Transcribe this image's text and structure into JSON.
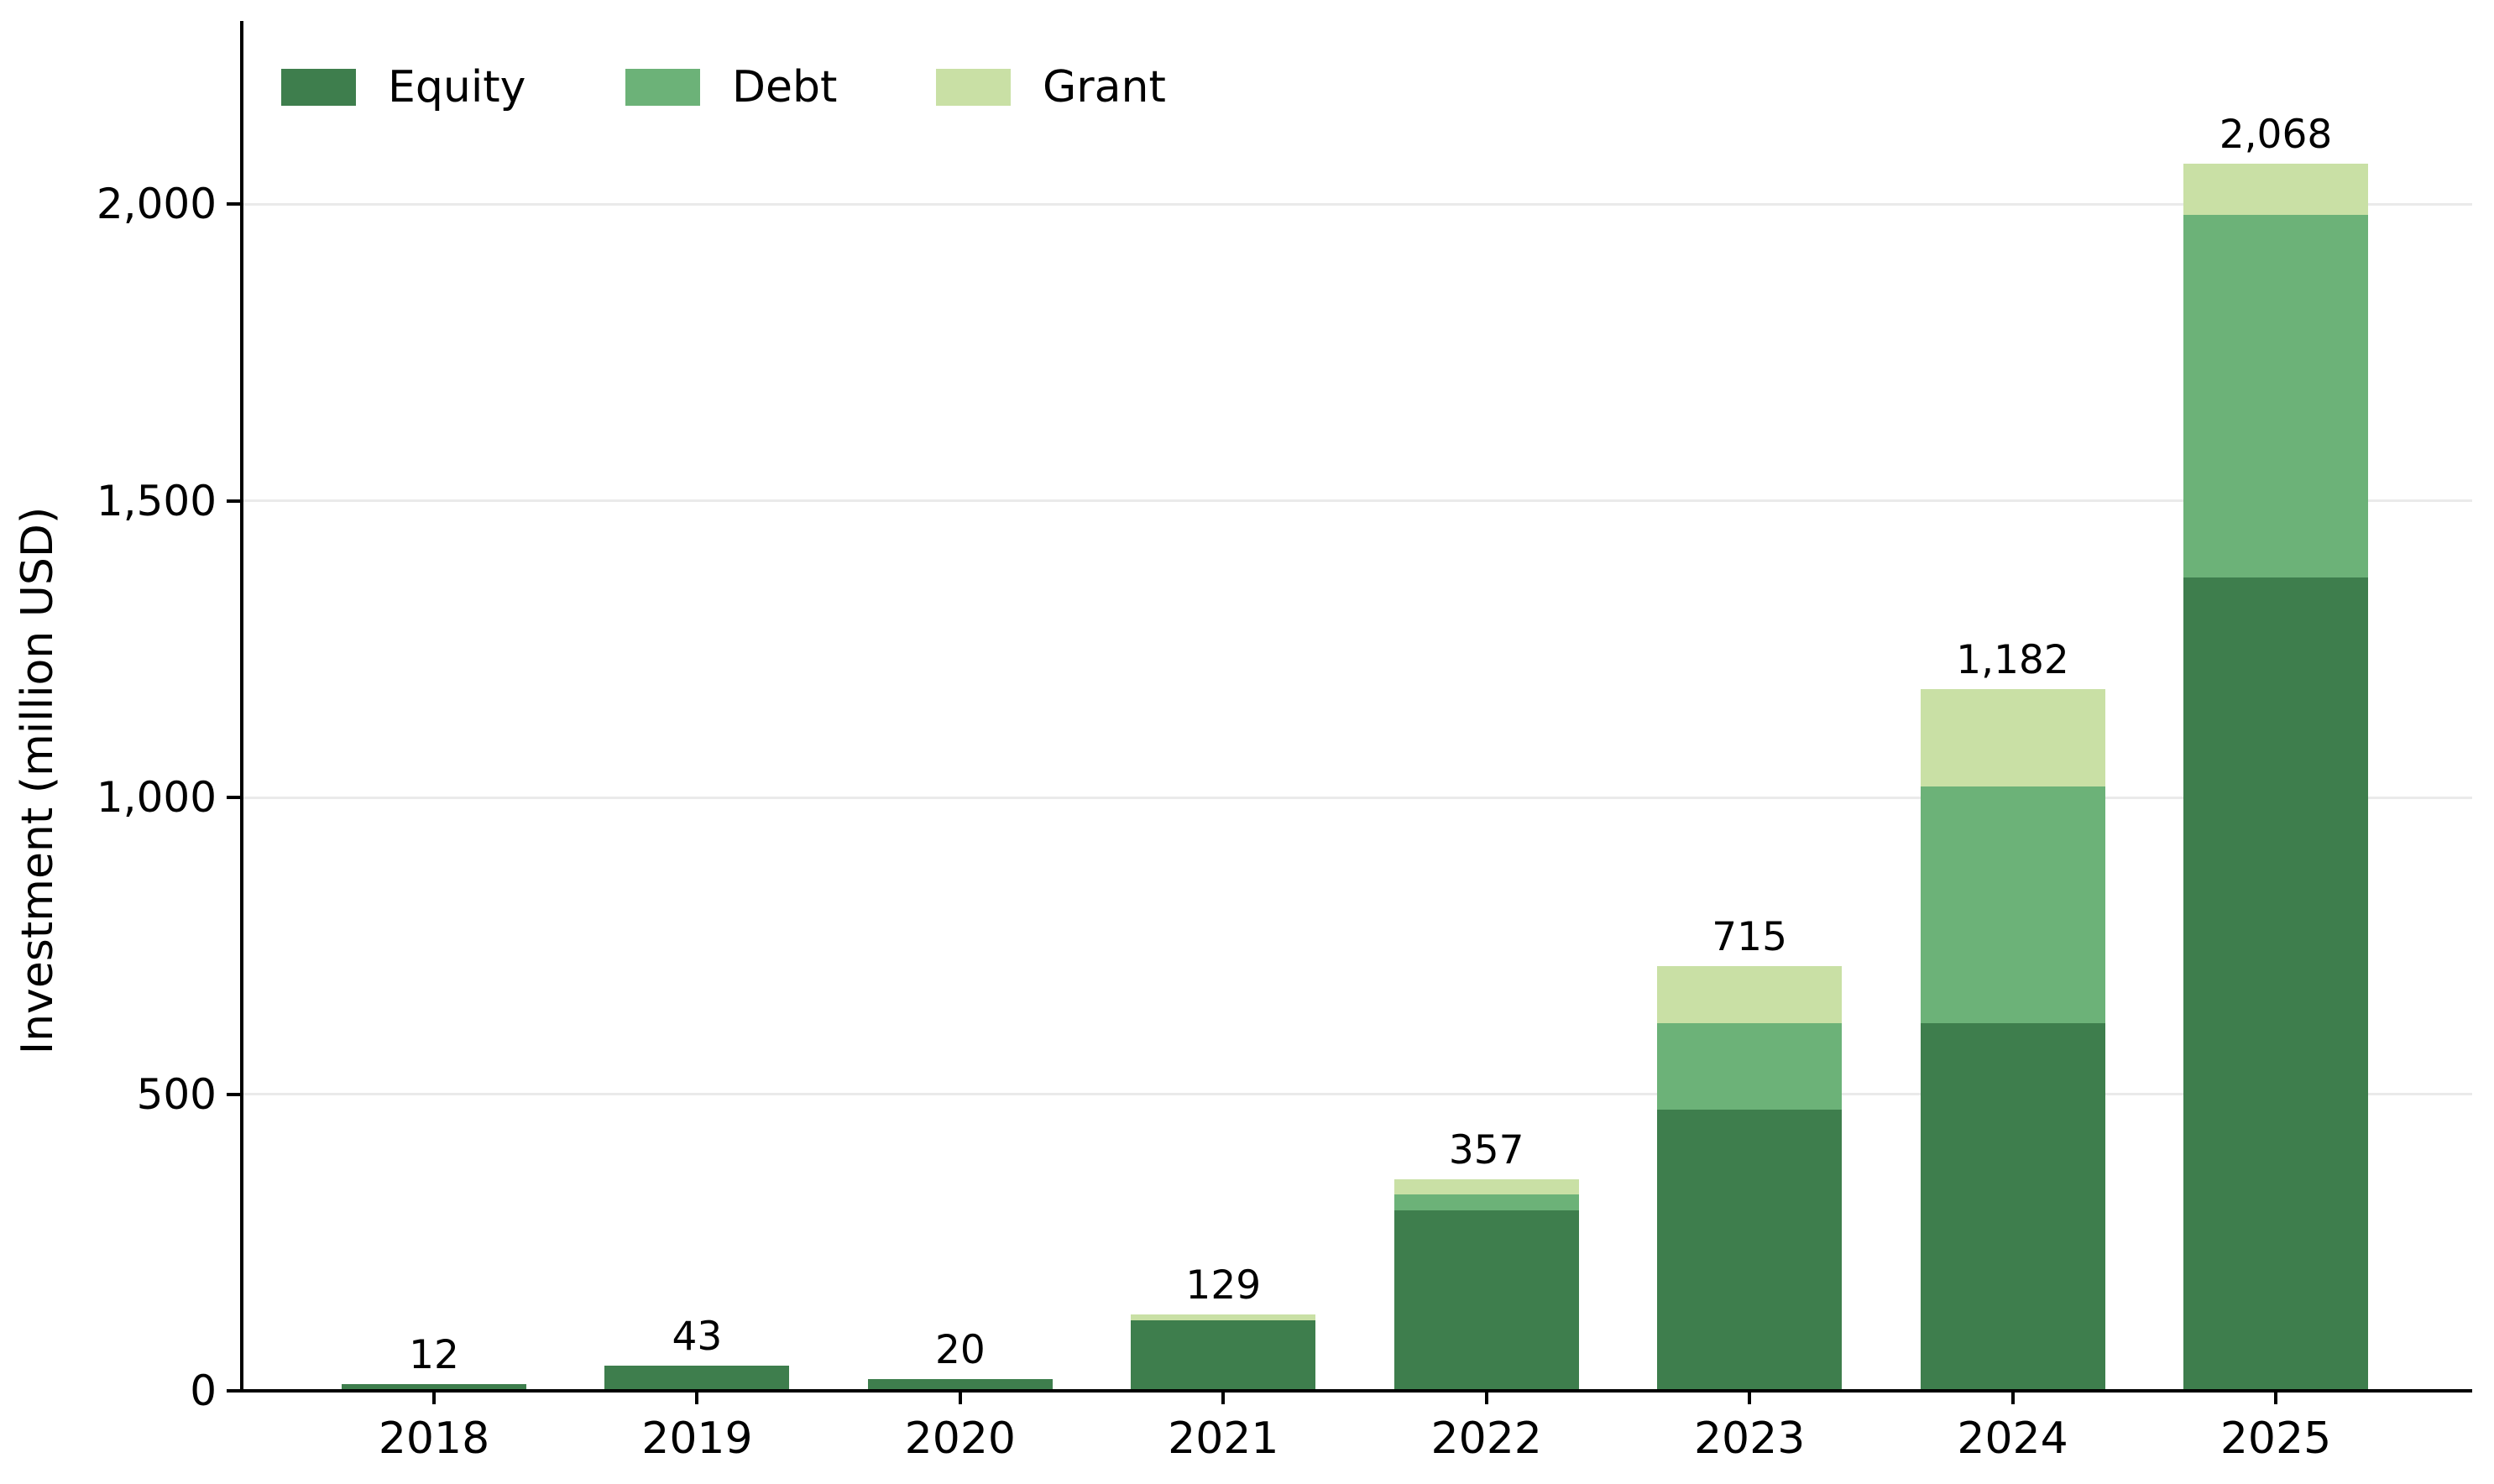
{
  "chart_data": {
    "type": "bar",
    "stacked": true,
    "title": "",
    "xlabel": "",
    "ylabel": "Investment (million USD)",
    "categories": [
      "2018",
      "2019",
      "2020",
      "2021",
      "2022",
      "2023",
      "2024",
      "2025"
    ],
    "series": [
      {
        "name": "Equity",
        "color": "#3e7e4d",
        "values": [
          12,
          43,
          20,
          119,
          304,
          474,
          620,
          1371
        ]
      },
      {
        "name": "Debt",
        "color": "#6cb278",
        "values": [
          0,
          0,
          0,
          0,
          27,
          146,
          398,
          611
        ]
      },
      {
        "name": "Grant",
        "color": "#c9e0a5",
        "values": [
          0,
          0,
          0,
          10,
          26,
          95,
          164,
          86
        ]
      }
    ],
    "totals": [
      12,
      43,
      20,
      129,
      357,
      715,
      1182,
      2068
    ],
    "total_labels": [
      "12",
      "43",
      "20",
      "129",
      "357",
      "715",
      "1,182",
      "2,068"
    ],
    "yticks": [
      {
        "value": 0,
        "label": "0"
      },
      {
        "value": 500,
        "label": "500"
      },
      {
        "value": 1000,
        "label": "1,000"
      },
      {
        "value": 1500,
        "label": "1,500"
      },
      {
        "value": 2000,
        "label": "2,000"
      }
    ],
    "ylim": [
      0,
      2308
    ],
    "grid": "horizontal",
    "legend_position": "top-left"
  },
  "colors": {
    "background": "#ffffff",
    "axis": "#000000",
    "grid": "#eaeaea",
    "text": "#000000"
  }
}
